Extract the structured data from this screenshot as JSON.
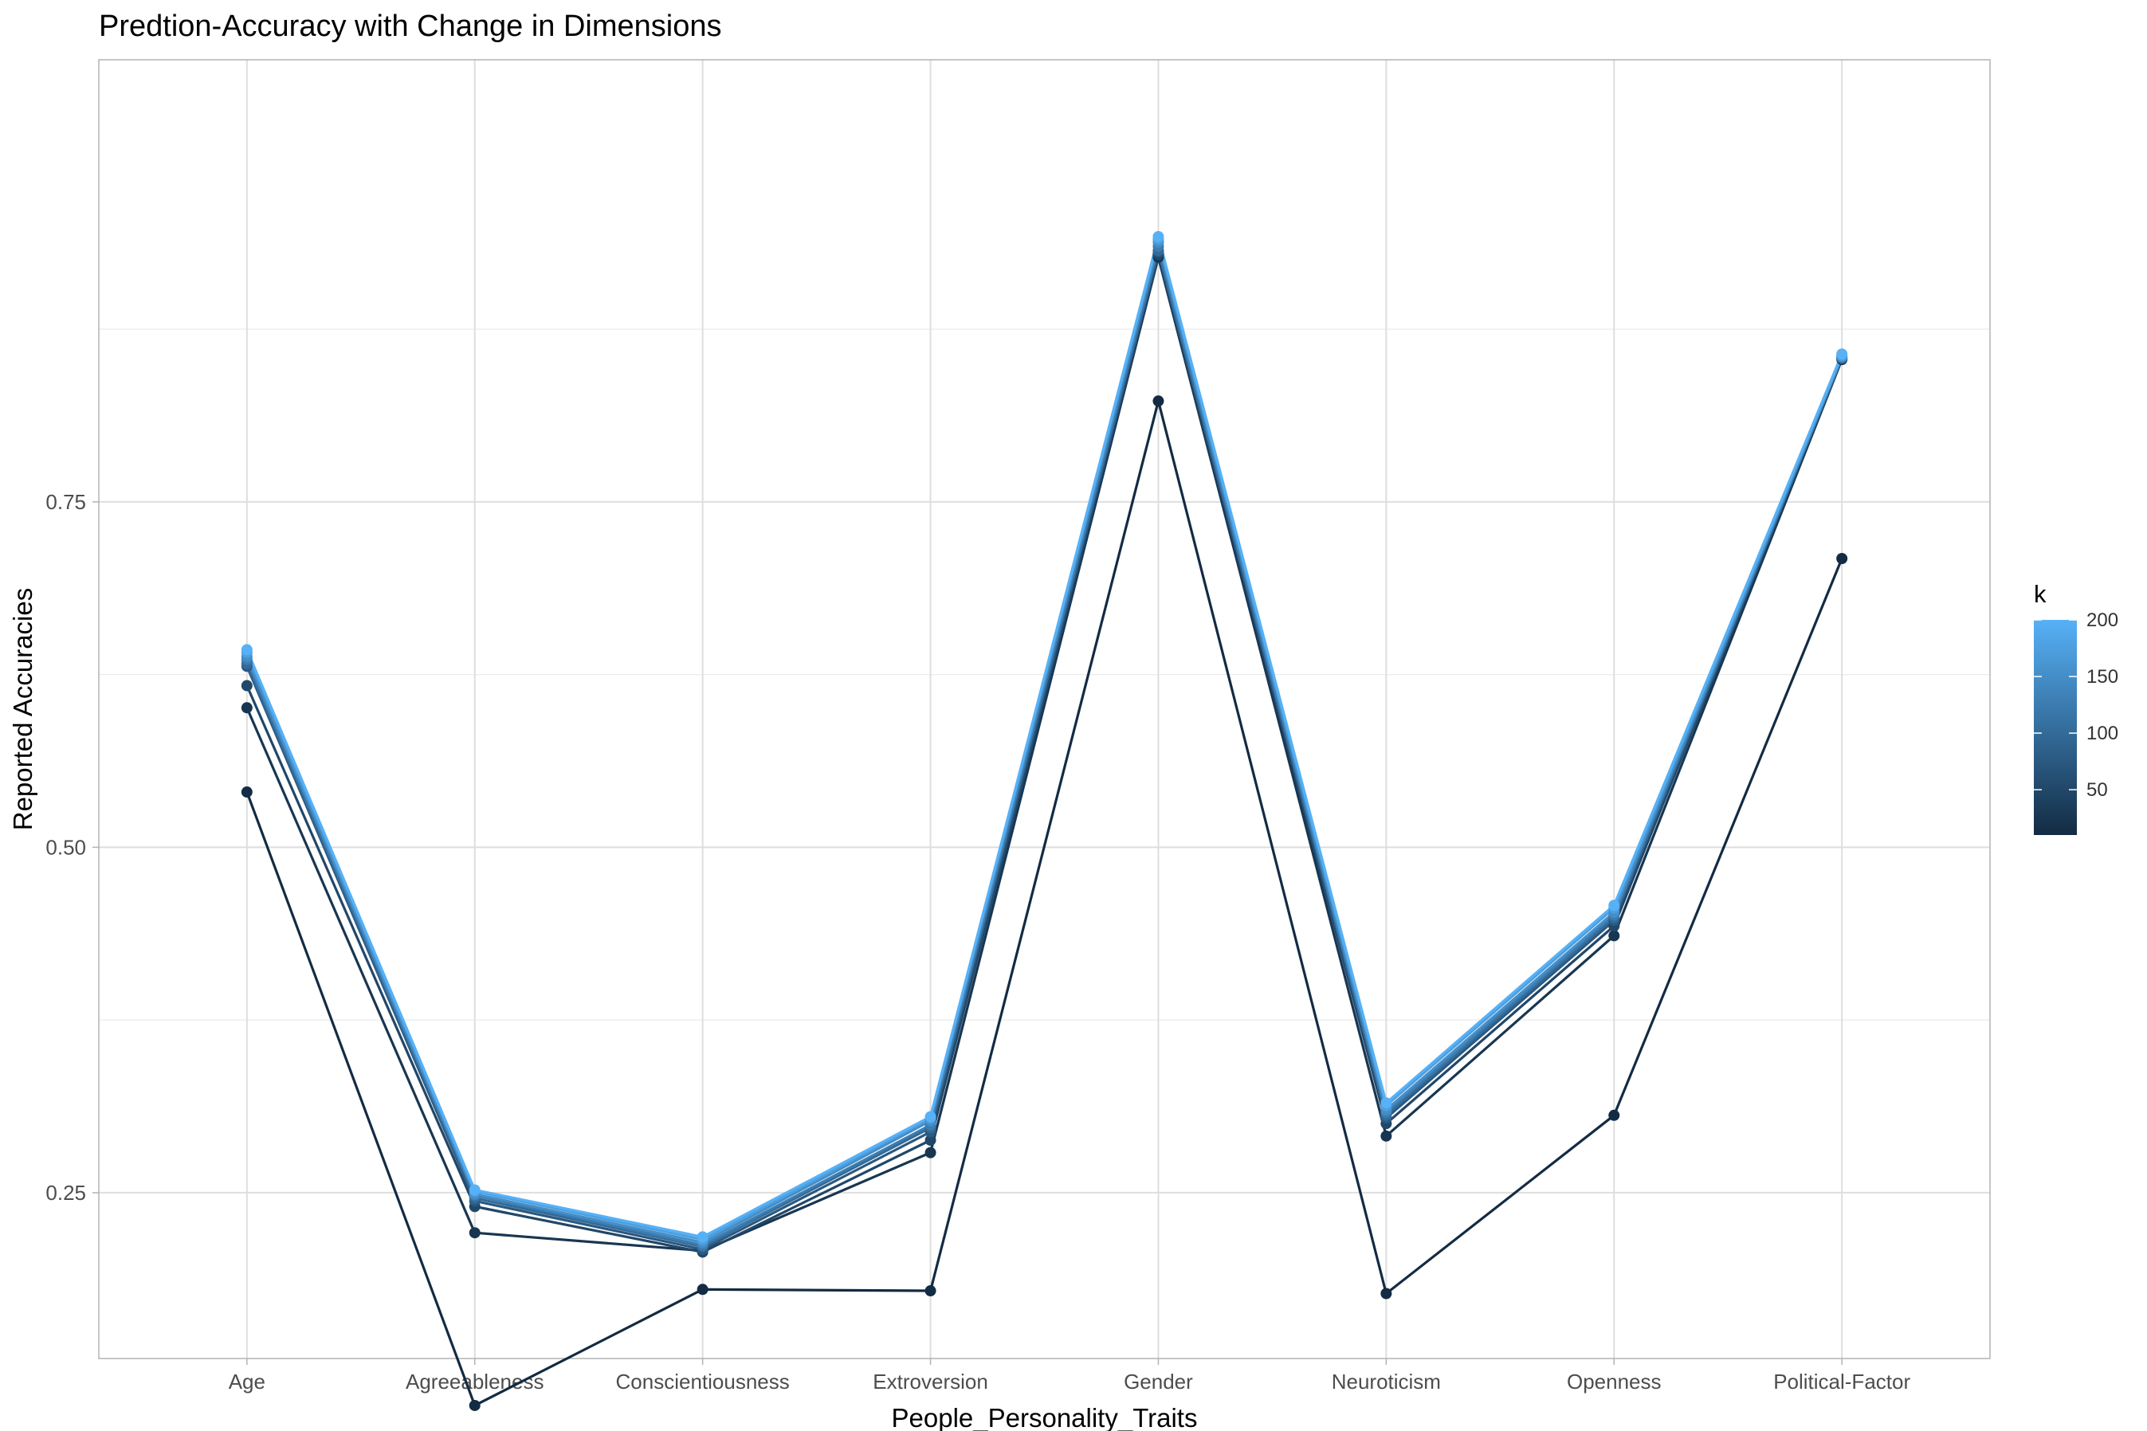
{
  "chart_data": {
    "type": "line",
    "title": "Predtion-Accuracy with Change in Dimensions",
    "xlabel": "People_Personality_Traits",
    "ylabel": "Reported Accuracies",
    "categories": [
      "Age",
      "Agreeableness",
      "Conscientiousness",
      "Extroversion",
      "Gender",
      "Neuroticism",
      "Openness",
      "Political-Factor"
    ],
    "ylim": [
      0.13,
      1.07
    ],
    "y_ticks": [
      0.25,
      0.5,
      0.75
    ],
    "y_tick_labels": [
      "0.25",
      "0.50",
      "0.75"
    ],
    "grid": true,
    "legend": {
      "title": "k",
      "position": "right",
      "labels": [
        "200",
        "150",
        "100",
        "50"
      ],
      "breaks": [
        200,
        150,
        100,
        50
      ],
      "range": [
        10,
        200
      ],
      "low_color": "#132b43",
      "high_color": "#56b1f7"
    },
    "series": [
      {
        "k": 10,
        "values": [
          0.54,
          0.096,
          0.18,
          0.179,
          0.823,
          0.177,
          0.306,
          0.709
        ]
      },
      {
        "k": 25,
        "values": [
          0.601,
          0.221,
          0.208,
          0.279,
          0.927,
          0.291,
          0.436,
          0.853
        ]
      },
      {
        "k": 50,
        "values": [
          0.617,
          0.24,
          0.207,
          0.288,
          0.929,
          0.3,
          0.443,
          0.854
        ]
      },
      {
        "k": 75,
        "values": [
          0.631,
          0.244,
          0.209,
          0.294,
          0.931,
          0.304,
          0.447,
          0.854
        ]
      },
      {
        "k": 100,
        "values": [
          0.633,
          0.246,
          0.211,
          0.297,
          0.932,
          0.306,
          0.449,
          0.854
        ]
      },
      {
        "k": 125,
        "values": [
          0.636,
          0.248,
          0.212,
          0.299,
          0.935,
          0.308,
          0.451,
          0.855
        ]
      },
      {
        "k": 150,
        "values": [
          0.638,
          0.249,
          0.214,
          0.302,
          0.938,
          0.31,
          0.453,
          0.855
        ]
      },
      {
        "k": 175,
        "values": [
          0.641,
          0.251,
          0.216,
          0.304,
          0.94,
          0.313,
          0.456,
          0.856
        ]
      },
      {
        "k": 200,
        "values": [
          0.643,
          0.252,
          0.218,
          0.305,
          0.942,
          0.315,
          0.458,
          0.857
        ]
      }
    ]
  }
}
